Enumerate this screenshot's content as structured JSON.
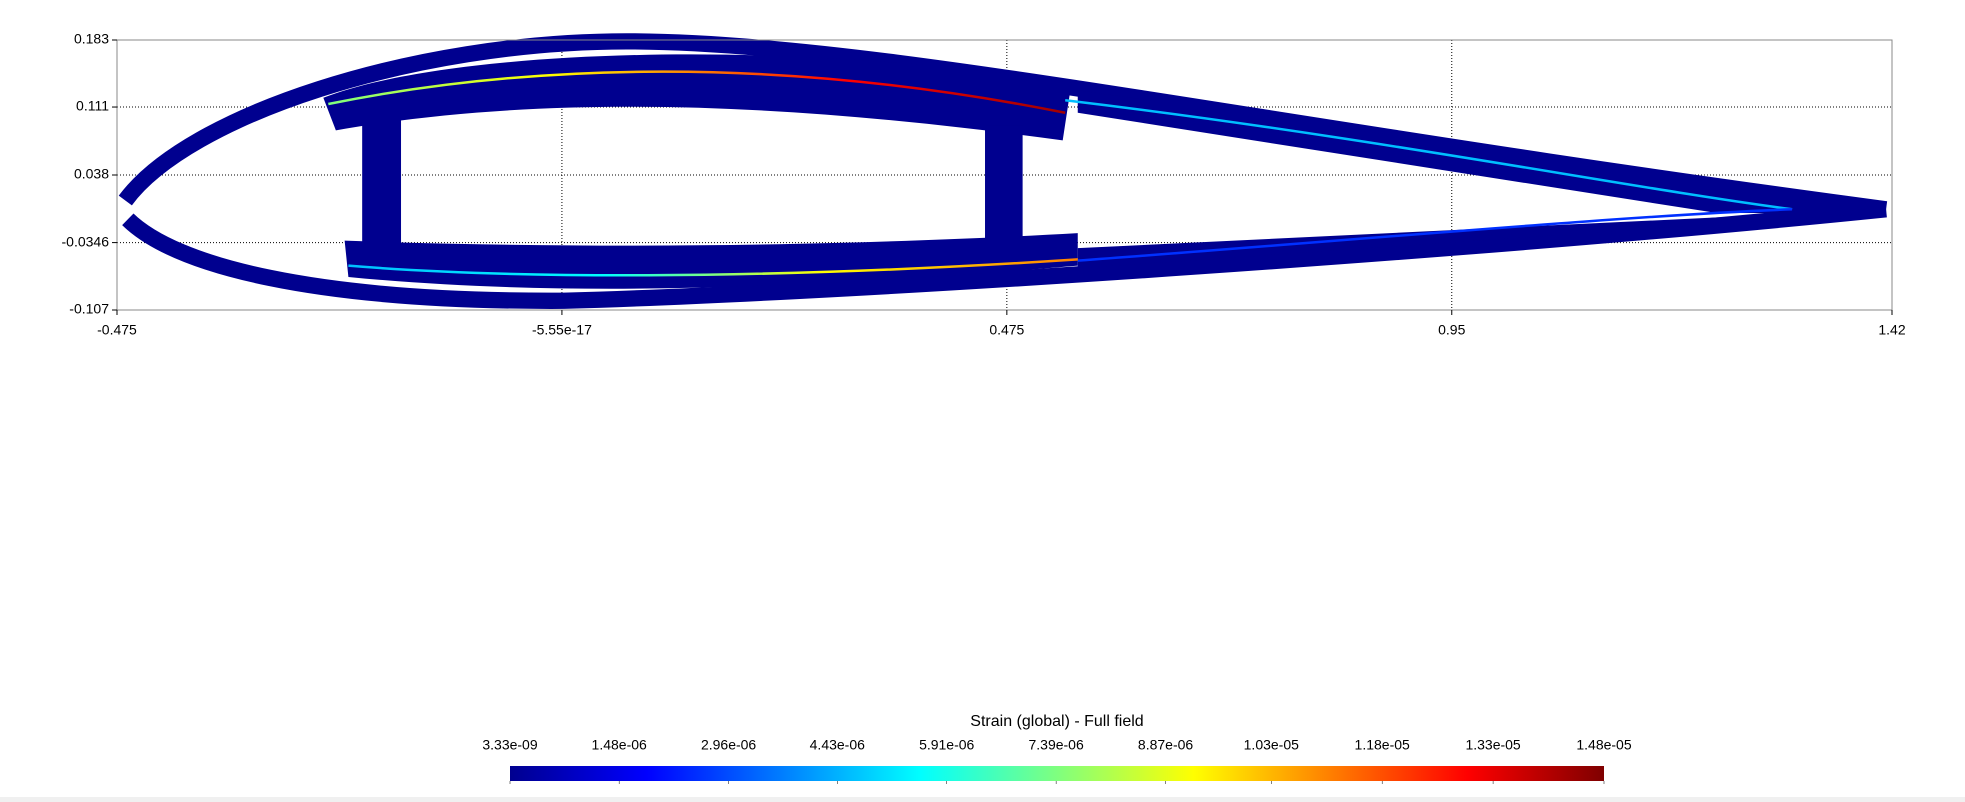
{
  "chart_data": {
    "type": "contour",
    "xlim": [
      -0.475,
      1.42
    ],
    "xticks": [
      -0.475,
      -5.55e-17,
      0.475,
      0.95,
      1.42
    ],
    "ylim": [
      -0.107,
      0.183
    ],
    "yticks": [
      -0.107,
      -0.0346,
      0.038,
      0.111,
      0.183
    ],
    "grid": true,
    "colorbar": {
      "title": "Strain (global) - Full field",
      "clim": [
        3.33e-09,
        1.48e-05
      ],
      "ticks": [
        {
          "value": 3.33e-09,
          "label": "3.33e-09"
        },
        {
          "value": 1.48e-06,
          "label": "1.48e-06"
        },
        {
          "value": 2.96e-06,
          "label": "2.96e-06"
        },
        {
          "value": 4.43e-06,
          "label": "4.43e-06"
        },
        {
          "value": 5.91e-06,
          "label": "5.91e-06"
        },
        {
          "value": 7.39e-06,
          "label": "7.39e-06"
        },
        {
          "value": 8.87e-06,
          "label": "8.87e-06"
        },
        {
          "value": 1.03e-05,
          "label": "1.03e-05"
        },
        {
          "value": 1.18e-05,
          "label": "1.18e-05"
        },
        {
          "value": 1.33e-05,
          "label": "1.33e-05"
        },
        {
          "value": 1.48e-05,
          "label": "1.48e-05"
        }
      ],
      "colors": [
        "#00008f",
        "#0000ff",
        "#007fff",
        "#00ffff",
        "#7fff7f",
        "#ffff00",
        "#ff7f00",
        "#ff0000",
        "#7f0000"
      ]
    }
  }
}
